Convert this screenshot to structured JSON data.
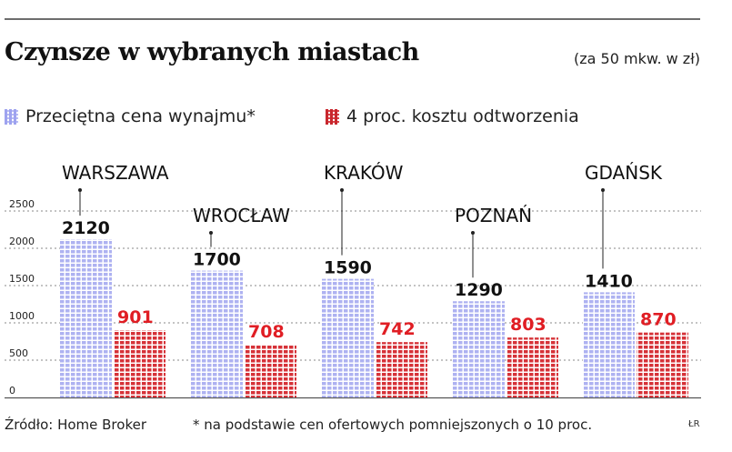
{
  "header": {
    "title": "Czynsze w wybranych miastach",
    "unit_note": "(za 50 mkw. w zł)"
  },
  "colors": {
    "series_a": "#b0b4f2",
    "series_b": "#d9353c",
    "series_b_label": "#e01e24",
    "grid": "#8a8a8a",
    "rule": "#6d6d6d"
  },
  "chart_data": {
    "type": "bar",
    "title": "Czynsze w wybranych miastach",
    "subtitle": "(za 50 mkw. w zł)",
    "categories": [
      "WARSZAWA",
      "WROCŁAW",
      "KRAKÓW",
      "POZNAŃ",
      "GDAŃSK"
    ],
    "series": [
      {
        "name": "Przeciętna cena wynajmu*",
        "values": [
          2120,
          1700,
          1590,
          1290,
          1410
        ]
      },
      {
        "name": "4 proc. kosztu odtworzenia",
        "values": [
          901,
          708,
          742,
          803,
          870
        ]
      }
    ],
    "yticks": [
      "0",
      "500",
      "1000",
      "1500",
      "2000",
      "2500"
    ],
    "ylim": [
      0,
      2500
    ],
    "grid": true,
    "legend": "top-left",
    "xlabel": "",
    "ylabel": ""
  },
  "footer": {
    "source": "Źródło: Home Broker",
    "footnote": "* na podstawie cen ofertowych pomniejszonych o 10 proc.",
    "credit": "ŁR"
  }
}
